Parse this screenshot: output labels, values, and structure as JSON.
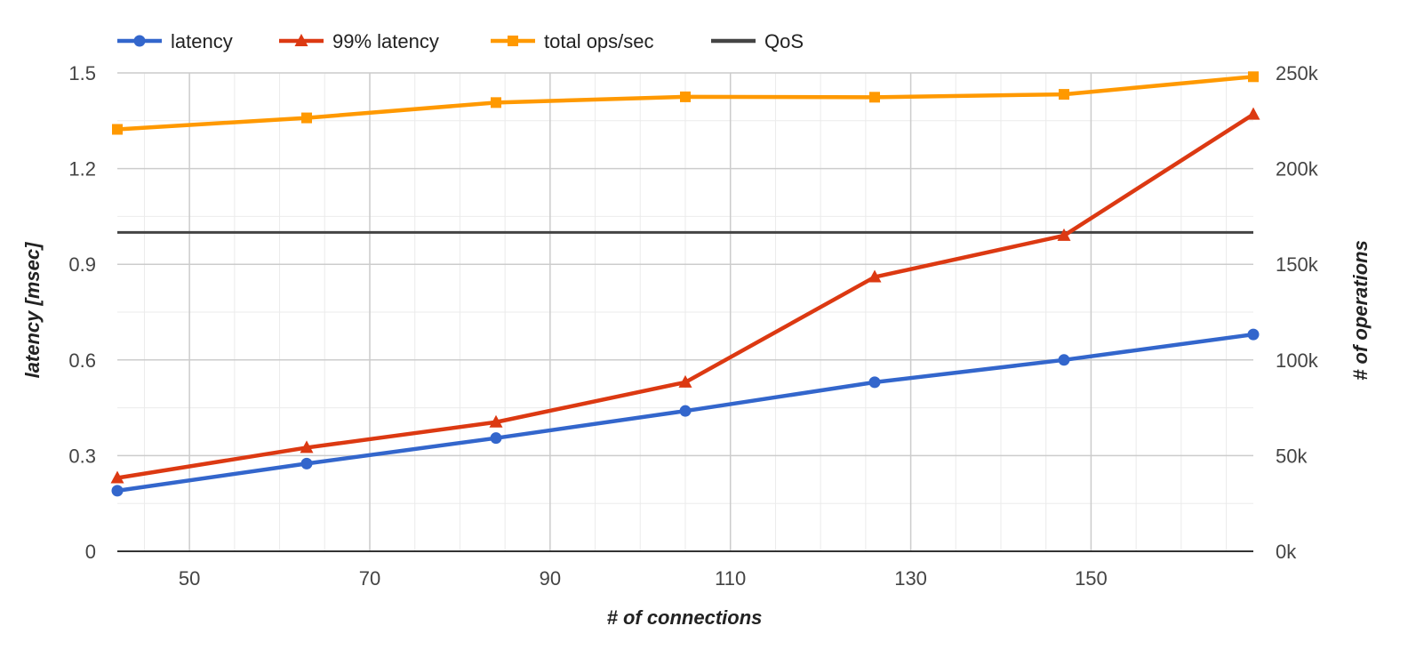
{
  "chart_data": {
    "type": "line",
    "x": [
      42,
      63,
      84,
      105,
      126,
      147,
      168
    ],
    "xlabel": "# of connections",
    "ylabel": "latency [msec]",
    "y2label": "# of operations",
    "xlim": [
      42,
      168
    ],
    "ylim": [
      0,
      1.5
    ],
    "y2lim": [
      0,
      250000
    ],
    "x_ticks": [
      50,
      70,
      90,
      110,
      130,
      150
    ],
    "x_tick_labels": [
      "50",
      "70",
      "90",
      "110",
      "130",
      "150"
    ],
    "y_ticks": [
      0,
      0.3,
      0.6,
      0.9,
      1.2,
      1.5
    ],
    "y_tick_labels": [
      "0",
      "0.3",
      "0.6",
      "0.9",
      "1.2",
      "1.5"
    ],
    "y2_ticks": [
      0,
      50000,
      100000,
      150000,
      200000,
      250000
    ],
    "y2_tick_labels": [
      "0k",
      "50k",
      "100k",
      "150k",
      "200k",
      "250k"
    ],
    "grid": true,
    "legend_position": "top-left",
    "series": [
      {
        "name": "latency",
        "axis": "left",
        "marker": "circle",
        "color": "#3366cc",
        "values": [
          0.19,
          0.275,
          0.355,
          0.44,
          0.53,
          0.6,
          0.68
        ]
      },
      {
        "name": "99% latency",
        "axis": "left",
        "marker": "triangle",
        "color": "#dc3912",
        "values": [
          0.23,
          0.325,
          0.405,
          0.53,
          0.86,
          0.99,
          1.37
        ]
      },
      {
        "name": "total ops/sec",
        "axis": "right",
        "marker": "square",
        "color": "#ff9900",
        "values": [
          220500,
          226500,
          234500,
          237500,
          237300,
          238800,
          248000
        ]
      },
      {
        "name": "QoS",
        "axis": "left",
        "marker": "none",
        "color": "#444444",
        "values": [
          1.0,
          1.0,
          1.0,
          1.0,
          1.0,
          1.0,
          1.0
        ]
      }
    ]
  }
}
